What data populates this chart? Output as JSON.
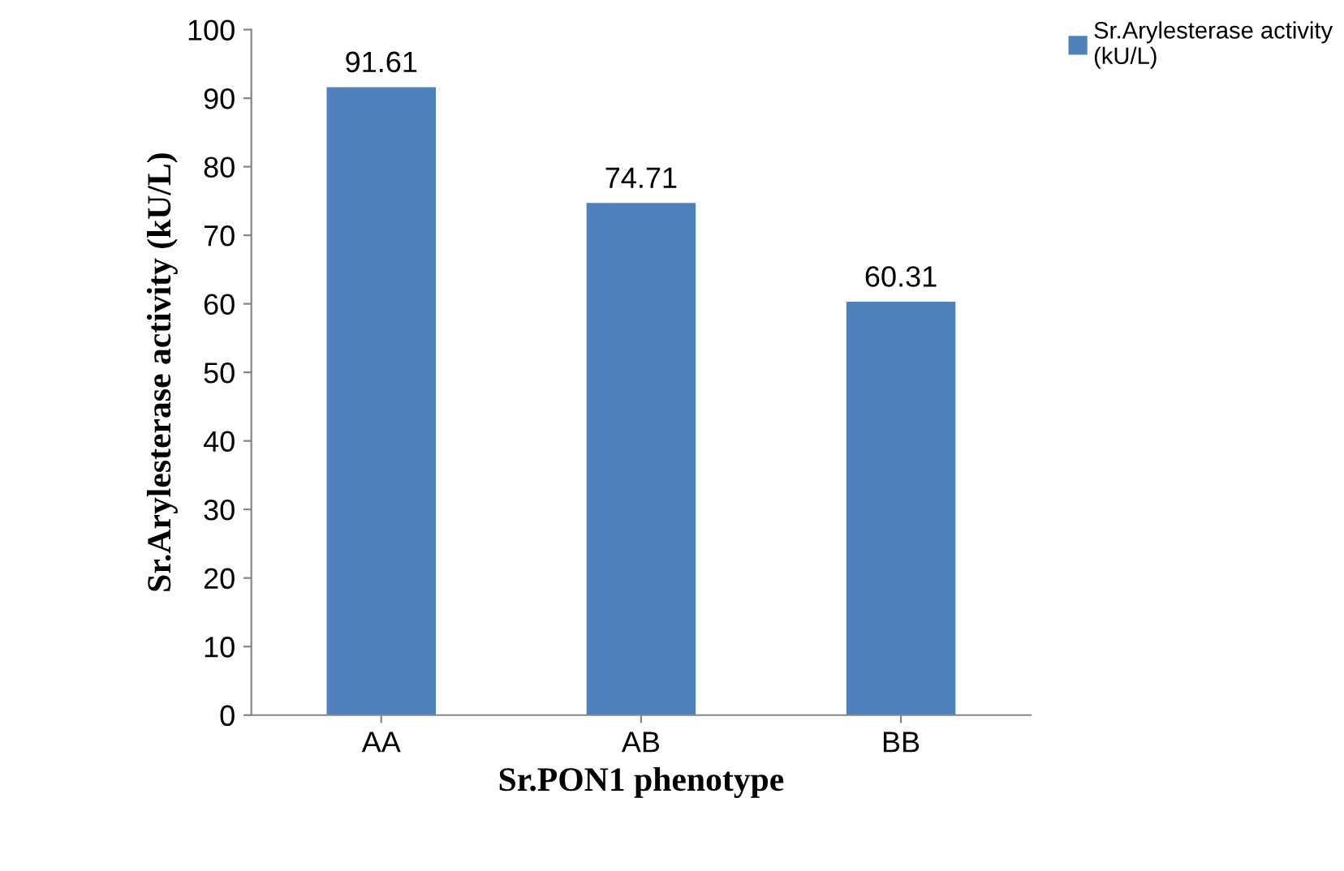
{
  "chart_data": {
    "type": "bar",
    "xlabel": "Sr.PON1 phenotype",
    "ylabel": "Sr.Arylesterase activity (kU/L)",
    "categories": [
      "AA",
      "AB",
      "BB"
    ],
    "series": [
      {
        "name": "Sr.Arylesterase activity (kU/L)",
        "color": "#4f81bd",
        "values": [
          91.61,
          74.71,
          60.31
        ]
      }
    ],
    "ylim": [
      0,
      100
    ],
    "yticks": [
      0,
      10,
      20,
      30,
      40,
      50,
      60,
      70,
      80,
      90,
      100
    ],
    "data_labels": true,
    "grid": false,
    "legend": "top right"
  }
}
